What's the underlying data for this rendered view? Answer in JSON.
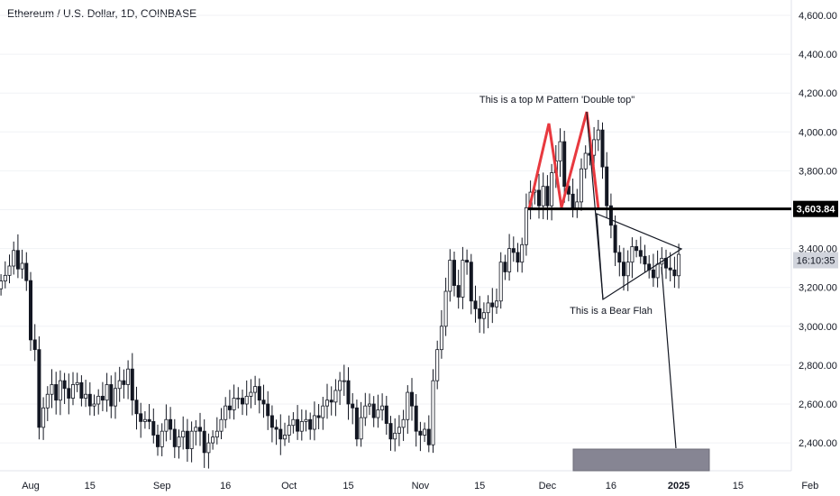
{
  "title": "Ethereum / U.S. Dollar, 1D, COINBASE",
  "chart_data": {
    "type": "candlestick",
    "y_ticks": [
      "4,600.00",
      "4,400.00",
      "4,200.00",
      "4,000.00",
      "3,800.00",
      "3,600.00",
      "3,400.00",
      "3,200.00",
      "3,000.00",
      "2,800.00",
      "2,600.00",
      "2,400.00"
    ],
    "y_tick_values": [
      4600,
      4400,
      4200,
      4000,
      3800,
      3600,
      3400,
      3200,
      3000,
      2800,
      2600,
      2400
    ],
    "x_ticks": [
      {
        "label": "Aug",
        "day": 1
      },
      {
        "label": "15",
        "day": 15
      },
      {
        "label": "Sep",
        "day": 32
      },
      {
        "label": "16",
        "day": 47
      },
      {
        "label": "Oct",
        "day": 62
      },
      {
        "label": "15",
        "day": 76
      },
      {
        "label": "Nov",
        "day": 93
      },
      {
        "label": "15",
        "day": 107
      },
      {
        "label": "Dec",
        "day": 123
      },
      {
        "label": "16",
        "day": 138
      },
      {
        "label": "2025",
        "day": 154,
        "bold": true
      },
      {
        "label": "15",
        "day": 168
      },
      {
        "label": "Feb",
        "day": 185
      }
    ],
    "ylim": [
      2340,
      4660
    ],
    "close_series": [
      3233,
      3262,
      3310,
      3390,
      3295,
      3324,
      3235,
      2930,
      2880,
      2480,
      2580,
      2650,
      2700,
      2620,
      2720,
      2680,
      2630,
      2700,
      2710,
      2630,
      2650,
      2590,
      2600,
      2640,
      2620,
      2700,
      2590,
      2680,
      2720,
      2700,
      2780,
      2620,
      2550,
      2510,
      2520,
      2510,
      2440,
      2380,
      2460,
      2520,
      2470,
      2380,
      2430,
      2460,
      2370,
      2460,
      2480,
      2460,
      2350,
      2400,
      2430,
      2460,
      2520,
      2590,
      2570,
      2630,
      2630,
      2600,
      2640,
      2660,
      2690,
      2620,
      2600,
      2540,
      2480,
      2470,
      2420,
      2440,
      2490,
      2520,
      2460,
      2510,
      2520,
      2470,
      2540,
      2530,
      2590,
      2620,
      2610,
      2670,
      2720,
      2720,
      2600,
      2580,
      2420,
      2530,
      2590,
      2600,
      2530,
      2570,
      2590,
      2500,
      2420,
      2450,
      2480,
      2520,
      2660,
      2590,
      2460,
      2440,
      2470,
      2390,
      2720,
      2880,
      3000,
      3180,
      3340,
      3210,
      3150,
      3340,
      3330,
      3130,
      3090,
      3040,
      3070,
      3120,
      3100,
      3130,
      3330,
      3280,
      3400,
      3380,
      3330,
      3420,
      3610,
      3690,
      3700,
      3620,
      3720,
      3620,
      3790,
      3850,
      3950,
      3720,
      3680,
      3600,
      3640,
      3810,
      3890,
      3880,
      3960,
      4010,
      3820,
      3620,
      3520,
      3380,
      3330,
      3260,
      3330,
      3410,
      3390,
      3360,
      3320,
      3290,
      3250,
      3320,
      3350,
      3300,
      3290,
      3260,
      3370
    ],
    "candle_start_day": -6,
    "current_price": "3,603.84",
    "countdown": "16:10:35",
    "annotations": [
      {
        "text": "This is a top M Pattern 'Double top\""
      },
      {
        "text": "This is a Bear Flah"
      }
    ]
  }
}
